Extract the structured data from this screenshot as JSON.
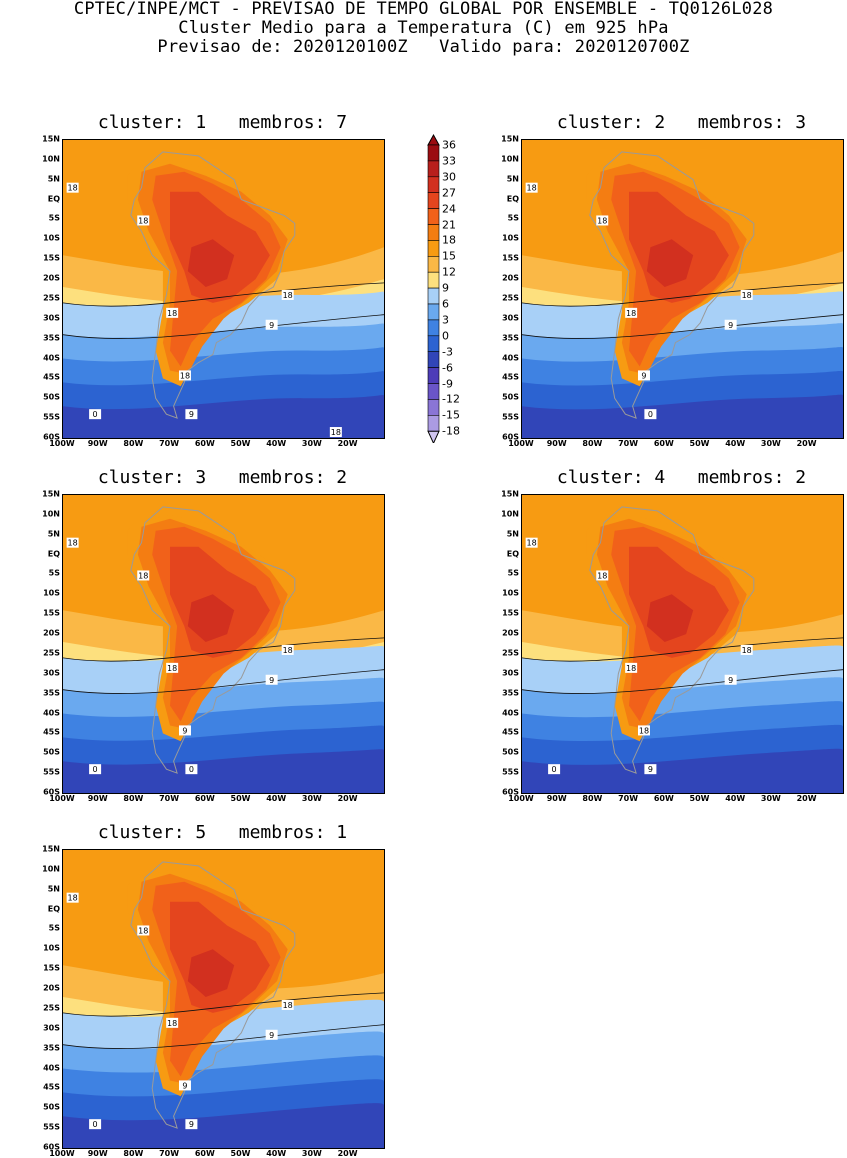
{
  "header": {
    "line1": "CPTEC/INPE/MCT - PREVISAO DE TEMPO GLOBAL POR ENSEMBLE - TQ0126L028",
    "line2": "Cluster Medio para a Temperatura (C) em 925 hPa",
    "line3": "Previsao de: 2020120100Z   Valido para: 2020120700Z"
  },
  "axes": {
    "lat_labels": [
      "15N",
      "10N",
      "5N",
      "EQ",
      "5S",
      "10S",
      "15S",
      "20S",
      "25S",
      "30S",
      "35S",
      "40S",
      "45S",
      "50S",
      "55S",
      "60S"
    ],
    "lon_labels": [
      "100W",
      "90W",
      "80W",
      "70W",
      "60W",
      "50W",
      "40W",
      "30W",
      "20W"
    ]
  },
  "legend": {
    "levels": [
      "36",
      "33",
      "30",
      "27",
      "24",
      "21",
      "18",
      "15",
      "12",
      "9",
      "6",
      "3",
      "0",
      "-3",
      "-6",
      "-9",
      "-12",
      "-15",
      "-18"
    ],
    "colors": [
      "#9b0d12",
      "#b81f1c",
      "#d2301f",
      "#e4451e",
      "#f1611a",
      "#f47d12",
      "#f79b12",
      "#fab846",
      "#fde07e",
      "#a8d0f7",
      "#6aa9ef",
      "#3f82e2",
      "#2c63d1",
      "#3145b8",
      "#4d3cb8",
      "#6a55c8",
      "#8a75d6",
      "#ab9be3",
      "#cfc4ef"
    ]
  },
  "panels": [
    {
      "title": "cluster: 1   membros: 7",
      "contour_labels": [
        "18",
        "18",
        "18",
        "18",
        "18",
        "9",
        "9",
        "0",
        "18"
      ]
    },
    {
      "title": "cluster: 2   membros: 3",
      "contour_labels": [
        "18",
        "18",
        "18",
        "18",
        "9",
        "9",
        "0"
      ]
    },
    {
      "title": "cluster: 3   membros: 2",
      "contour_labels": [
        "18",
        "18",
        "18",
        "18",
        "9",
        "9",
        "0",
        "0"
      ]
    },
    {
      "title": "cluster: 4   membros: 2",
      "contour_labels": [
        "18",
        "18",
        "18",
        "18",
        "18",
        "9",
        "9",
        "0"
      ]
    },
    {
      "title": "cluster: 5   membros: 1",
      "contour_labels": [
        "18",
        "18",
        "18",
        "18",
        "9",
        "9",
        "9",
        "0"
      ]
    }
  ]
}
